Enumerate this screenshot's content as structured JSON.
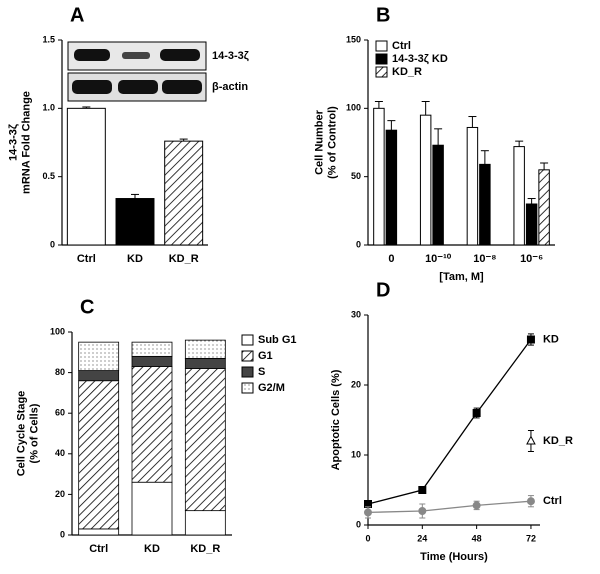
{
  "chart_data": [
    {
      "type": "bar",
      "panel": "A",
      "ylabel": [
        "14-3-3ζ",
        "mRNA Fold Change"
      ],
      "blot_labels": [
        "14-3-3ζ",
        "β-actin"
      ],
      "categories": [
        "Ctrl",
        "KD",
        "KD_R"
      ],
      "series": [
        {
          "color": "#ffffff",
          "pattern": "none",
          "values": [
            1.0,
            0.34,
            0.76
          ],
          "errors": [
            0.01,
            0.03,
            0.015
          ]
        }
      ],
      "patterns": [
        "none",
        "solid",
        "hatch"
      ],
      "ylim": [
        0,
        1.5
      ],
      "yticks": [
        0,
        0.5,
        {
          "value": 1,
          "label": "1.0"
        },
        1.5
      ]
    },
    {
      "type": "grouped_bar",
      "panel": "B",
      "ylabel": [
        "Cell Number",
        "(% of Control)"
      ],
      "xlabel": "[Tam, M]",
      "categories": [
        "0",
        "10⁻¹⁰",
        "10⁻⁸",
        "10⁻⁶"
      ],
      "series": [
        {
          "name": "Ctrl",
          "color": "#ffffff",
          "pattern": "none",
          "values": [
            100,
            95,
            86,
            72
          ],
          "errors": [
            5,
            10,
            8,
            4
          ]
        },
        {
          "name": "14-3-3ζ KD",
          "color": "#000000",
          "pattern": "none",
          "values": [
            84,
            73,
            59,
            30
          ],
          "errors": [
            7,
            12,
            10,
            4
          ]
        },
        {
          "name": "KD_R",
          "color": "#ffffff",
          "pattern": "hatch",
          "values": [
            null,
            null,
            null,
            55
          ],
          "errors": [
            null,
            null,
            null,
            5
          ]
        }
      ],
      "ylim": [
        0,
        150
      ],
      "yticks": [
        0,
        50,
        100,
        150
      ],
      "legend": "top-left"
    },
    {
      "type": "stacked_bar",
      "panel": "C",
      "ylabel": [
        "Cell Cycle Stage",
        "(% of Cells)"
      ],
      "categories": [
        "Ctrl",
        "KD",
        "KD_R"
      ],
      "series": [
        {
          "name": "Sub G1",
          "color": "#ffffff",
          "pattern": "none",
          "values": [
            3,
            26,
            12
          ]
        },
        {
          "name": "G1",
          "color": "#ffffff",
          "pattern": "hatch",
          "values": [
            73,
            57,
            70
          ]
        },
        {
          "name": "S",
          "color": "#444444",
          "pattern": "none",
          "values": [
            5,
            5,
            5
          ]
        },
        {
          "name": "G2/M",
          "color": "#ffffff",
          "pattern": "dots",
          "values": [
            14,
            7,
            9
          ]
        }
      ],
      "ylim": [
        0,
        100
      ],
      "yticks": [
        0,
        20,
        40,
        60,
        80,
        100
      ],
      "legend": "right"
    },
    {
      "type": "line",
      "panel": "D",
      "ylabel": [
        "Apoptotic Cells (%)"
      ],
      "xlabel": "Time  (Hours)",
      "x": [
        0,
        24,
        48,
        72
      ],
      "series": [
        {
          "name": "KD",
          "color": "#000000",
          "marker": "square",
          "values": [
            3,
            5,
            16,
            26.5
          ],
          "errors": [
            0.5,
            0.5,
            0.7,
            0.8
          ]
        },
        {
          "name": "KD_R",
          "color": "#ffffff",
          "marker": "triangle",
          "values": [
            null,
            null,
            null,
            12
          ],
          "errors": [
            null,
            null,
            null,
            1.5
          ]
        },
        {
          "name": "Ctrl",
          "color": "#888888",
          "marker": "circle",
          "values": [
            1.8,
            2,
            2.8,
            3.4
          ],
          "errors": [
            0.8,
            1,
            0.6,
            0.8
          ]
        }
      ],
      "xlim": [
        0,
        76
      ],
      "xticks": [
        0,
        24,
        48,
        72
      ],
      "ylim": [
        0,
        30
      ],
      "yticks": [
        0,
        10,
        20,
        30
      ]
    }
  ]
}
